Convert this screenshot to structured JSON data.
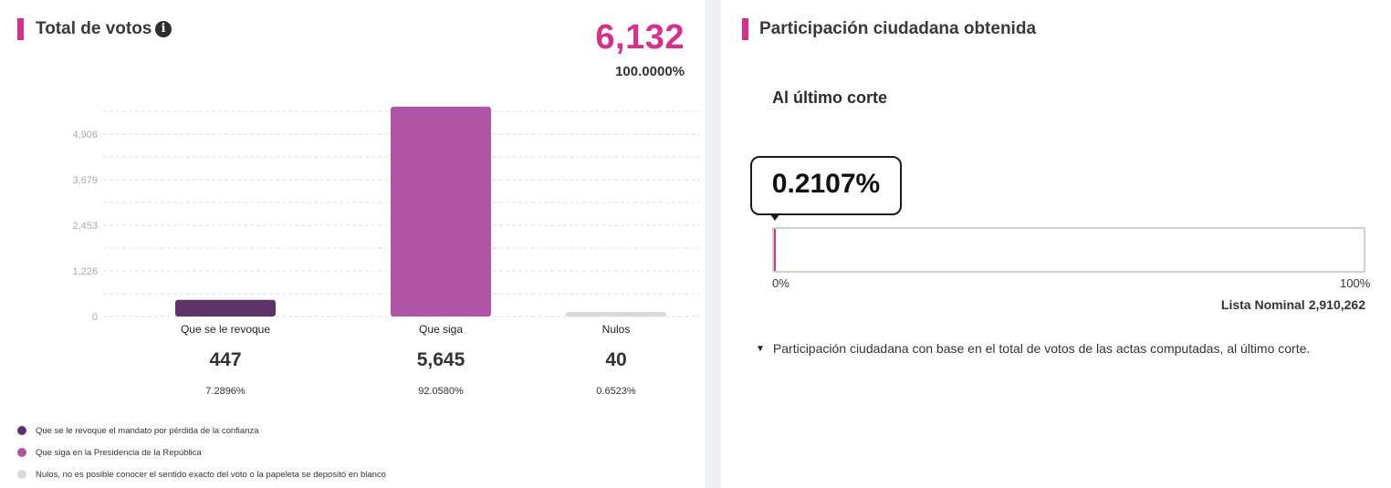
{
  "left_panel": {
    "title": "Total de votos",
    "info_icon": "info-icon",
    "total_votes": "6,132",
    "total_pct": "100.0000%"
  },
  "chart_data": {
    "type": "bar",
    "categories": [
      "Que se le revoque",
      "Que siga",
      "Nulos"
    ],
    "values": [
      447,
      5645,
      40
    ],
    "percentages": [
      "7.2896%",
      "92.0580%",
      "0.6523%"
    ],
    "vote_labels": [
      "447",
      "5,645",
      "40"
    ],
    "colors": [
      "#5e3369",
      "#b055a6",
      "#d9d9d9"
    ],
    "yticks": [
      0,
      1226,
      2453,
      3679,
      4906
    ],
    "ytick_labels": [
      "0",
      "1,226",
      "2,453",
      "3,679",
      "4,906"
    ],
    "ylim": [
      0,
      5600
    ],
    "grid": true
  },
  "legend": [
    {
      "text": "Que se le revoque el mandato por pérdida de la confianza",
      "color": "#5e3369"
    },
    {
      "text": "Que siga en la Presidencia de la República",
      "color": "#b055a6"
    },
    {
      "text": "Nulos, no es posible conocer el sentido exacto del voto o la papeleta se depositó en blanco",
      "color": "#d9d9d9"
    }
  ],
  "right_panel": {
    "title": "Participación ciudadana obtenida",
    "cut_label": "Al último corte",
    "participation_pct": "0.2107%",
    "participation_fraction": 0.002107,
    "progress_min_label": "0%",
    "progress_max_label": "100%",
    "nominal_label": "Lista Nominal",
    "nominal_value": "2,910,262",
    "note": "Participación ciudadana con base en el total de votos de las actas computadas, al último corte.",
    "note_icon": "triangle-down-icon"
  },
  "colors": {
    "accent": "#d5308c"
  }
}
